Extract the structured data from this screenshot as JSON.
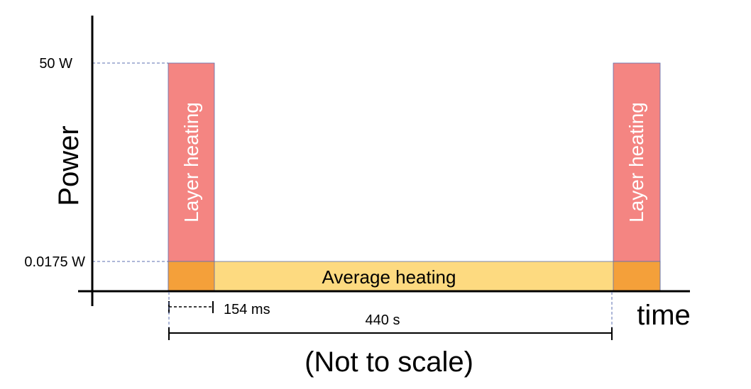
{
  "diagram": {
    "y_axis_label": "Power",
    "x_axis_label": "time",
    "y_ticks": {
      "high": "50 W",
      "low": "0.0175 W"
    },
    "pulse_label": "Layer heating",
    "background_label": "Average heating",
    "pulse_width_label": "154 ms",
    "period_label": "440 s",
    "caption": "(Not to scale)",
    "colors": {
      "pulse": "#f48582",
      "pulse_border": "#5b6fb0",
      "average": "#fdda80",
      "overlap": "#f4a03a",
      "guide": "#5b6fb0",
      "axis": "#000000"
    }
  }
}
